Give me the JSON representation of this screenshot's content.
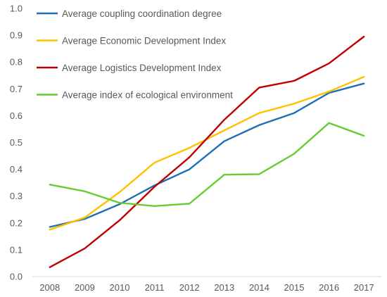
{
  "chart_data": {
    "type": "line",
    "title": "",
    "xlabel": "",
    "ylabel": "",
    "x": [
      "2008",
      "2009",
      "2010",
      "2011",
      "2012",
      "2013",
      "2014",
      "2015",
      "2016",
      "2017"
    ],
    "ylim": [
      0,
      1.0
    ],
    "yticks": [
      "0.0",
      "0.1",
      "0.2",
      "0.3",
      "0.4",
      "0.5",
      "0.6",
      "0.7",
      "0.8",
      "0.9",
      "1.0"
    ],
    "grid": false,
    "legend_position": "top-left",
    "series": [
      {
        "name": "Average coupling coordination degree",
        "color": "#1f6fb6",
        "values": [
          0.185,
          0.215,
          0.27,
          0.34,
          0.4,
          0.505,
          0.565,
          0.61,
          0.685,
          0.72
        ]
      },
      {
        "name": "Average Economic Development Index",
        "color": "#ffc000",
        "values": [
          0.175,
          0.22,
          0.315,
          0.425,
          0.48,
          0.545,
          0.61,
          0.645,
          0.69,
          0.745
        ]
      },
      {
        "name": "Average Logistics Development Index",
        "color": "#c00000",
        "values": [
          0.035,
          0.105,
          0.21,
          0.335,
          0.445,
          0.585,
          0.705,
          0.73,
          0.795,
          0.895
        ]
      },
      {
        "name": "Average index of ecological environment",
        "color": "#66cc33",
        "values": [
          0.343,
          0.318,
          0.275,
          0.263,
          0.272,
          0.38,
          0.382,
          0.458,
          0.573,
          0.525
        ]
      }
    ]
  }
}
